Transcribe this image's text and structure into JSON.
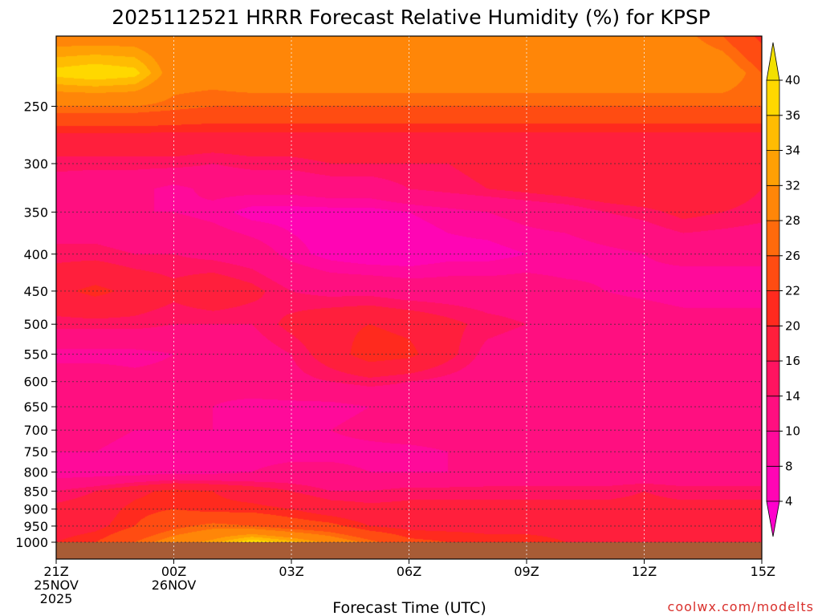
{
  "chart_data": {
    "type": "heatmap",
    "title": "2025112521 HRRR Forecast Relative Humidity (%) for KPSP",
    "xlabel": "Forecast Time (UTC)",
    "ylabel": "",
    "credit": "coolwx.com/modelts",
    "x_hours": [
      0,
      1,
      2,
      3,
      4,
      5,
      6,
      7,
      8,
      9,
      10,
      11,
      12,
      13,
      14,
      15,
      16,
      17,
      18
    ],
    "x_ticks": [
      {
        "hour": 0,
        "label": "21Z",
        "label2": "25NOV",
        "label3": "2025"
      },
      {
        "hour": 3,
        "label": "00Z",
        "label2": "26NOV",
        "label3": ""
      },
      {
        "hour": 6,
        "label": "03Z",
        "label2": "",
        "label3": ""
      },
      {
        "hour": 9,
        "label": "06Z",
        "label2": "",
        "label3": ""
      },
      {
        "hour": 12,
        "label": "09Z",
        "label2": "",
        "label3": ""
      },
      {
        "hour": 15,
        "label": "12Z",
        "label2": "",
        "label3": ""
      },
      {
        "hour": 18,
        "label": "15Z",
        "label2": "",
        "label3": ""
      }
    ],
    "y_ticks": [
      250,
      300,
      350,
      400,
      450,
      500,
      550,
      600,
      650,
      700,
      750,
      800,
      850,
      900,
      950,
      1000
    ],
    "y_levels": [
      200,
      225,
      250,
      275,
      300,
      325,
      350,
      400,
      450,
      500,
      550,
      600,
      650,
      700,
      750,
      800,
      850,
      900,
      950,
      1000
    ],
    "ylim": [
      200,
      1000
    ],
    "yscale": "log",
    "grid": true,
    "colorbar": {
      "levels": [
        4,
        8,
        10,
        14,
        16,
        20,
        22,
        26,
        28,
        32,
        34,
        36,
        40
      ],
      "colors": [
        "#ff00cc",
        "#ff05b4",
        "#ff0a9a",
        "#ff0f80",
        "#ff1460",
        "#ff1f3c",
        "#ff2a1e",
        "#ff4c12",
        "#ff6a0c",
        "#ff8608",
        "#ffa004",
        "#ffbc02",
        "#ffd800",
        "#f2e000"
      ],
      "extend": "both"
    },
    "values": [
      [
        30,
        30,
        30,
        29,
        29,
        29,
        29,
        29,
        29,
        29,
        29,
        29,
        29,
        29,
        29,
        29,
        29,
        26,
        21
      ],
      [
        37,
        38,
        37,
        30,
        30,
        31,
        31,
        31,
        31,
        31,
        31,
        31,
        31,
        31,
        31,
        31,
        31,
        31,
        26
      ],
      [
        28,
        28,
        28,
        27,
        26,
        26,
        26,
        26,
        26,
        26,
        26,
        26,
        26,
        26,
        26,
        26,
        26,
        26,
        26
      ],
      [
        19,
        19,
        19,
        19,
        19,
        19,
        19,
        19,
        19,
        19,
        19,
        19,
        19,
        19,
        19,
        19,
        19,
        19,
        19
      ],
      [
        15,
        15,
        15,
        15,
        14,
        15,
        15,
        16,
        16,
        16,
        16,
        17,
        17,
        17,
        18,
        18,
        17,
        17,
        17
      ],
      [
        12,
        11,
        11,
        9,
        11,
        11,
        11,
        12,
        12,
        14,
        15,
        16,
        17,
        18,
        19,
        20,
        20,
        18,
        16
      ],
      [
        11,
        11,
        10,
        10,
        9,
        7,
        7,
        7,
        7,
        8,
        9,
        10,
        11,
        12,
        14,
        15,
        17,
        16,
        15
      ],
      [
        15,
        15,
        14,
        14,
        13,
        12,
        9,
        7,
        6,
        6,
        7,
        7,
        8,
        8,
        9,
        10,
        11,
        11,
        11
      ],
      [
        19,
        21,
        19,
        17,
        19,
        17,
        14,
        13,
        13,
        12,
        12,
        12,
        12,
        11,
        10,
        9,
        8,
        8,
        8
      ],
      [
        15,
        15,
        15,
        14,
        14,
        14,
        17,
        19,
        20,
        19,
        17,
        15,
        14,
        13,
        13,
        13,
        12,
        12,
        12
      ],
      [
        9,
        9,
        9,
        10,
        10,
        12,
        14,
        18,
        22,
        21,
        17,
        13,
        12,
        12,
        11,
        11,
        11,
        11,
        11
      ],
      [
        12,
        12,
        11,
        11,
        11,
        12,
        13,
        14,
        15,
        14,
        13,
        12,
        12,
        12,
        12,
        12,
        12,
        12,
        12
      ],
      [
        14,
        13,
        12,
        11,
        10,
        9,
        9,
        9,
        10,
        11,
        12,
        13,
        14,
        14,
        14,
        14,
        14,
        14,
        14
      ],
      [
        12,
        11,
        10,
        10,
        10,
        9,
        9,
        10,
        11,
        12,
        12,
        12,
        12,
        12,
        12,
        12,
        12,
        12,
        12
      ],
      [
        10,
        10,
        9,
        9,
        9,
        9,
        9,
        9,
        9,
        9,
        10,
        10,
        10,
        10,
        10,
        10,
        10,
        10,
        10
      ],
      [
        8,
        8,
        8,
        9,
        9,
        10,
        11,
        11,
        10,
        10,
        10,
        11,
        11,
        11,
        11,
        11,
        11,
        11,
        11
      ],
      [
        14,
        16,
        19,
        21,
        20,
        18,
        16,
        14,
        14,
        15,
        15,
        15,
        15,
        15,
        15,
        16,
        15,
        15,
        15
      ],
      [
        17,
        18,
        21,
        22,
        21,
        21,
        20,
        18,
        17,
        17,
        17,
        17,
        17,
        17,
        17,
        17,
        17,
        17,
        17
      ],
      [
        18,
        19,
        22,
        25,
        27,
        26,
        24,
        23,
        20,
        19,
        19,
        19,
        19,
        19,
        19,
        19,
        19,
        19,
        19
      ],
      [
        20,
        22,
        26,
        30,
        33,
        38,
        35,
        31,
        27,
        23,
        22,
        21,
        21,
        20,
        20,
        20,
        20,
        20,
        20
      ]
    ]
  }
}
